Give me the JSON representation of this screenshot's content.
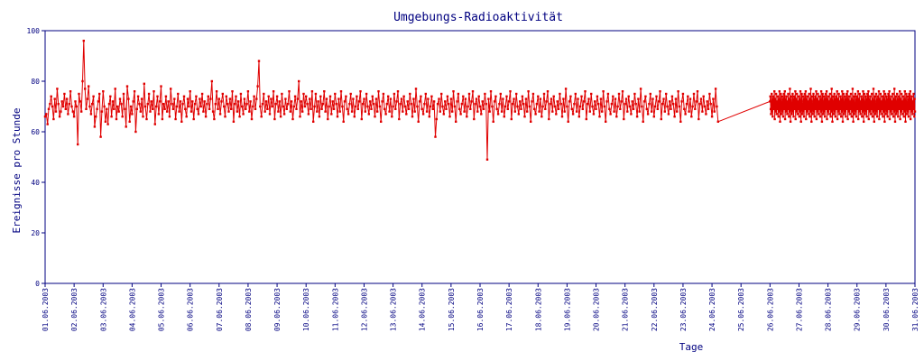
{
  "chart_data": {
    "type": "line",
    "title": "Umgebungs-Radioaktivität",
    "xlabel": "Tage",
    "ylabel": "Ereignisse pro Stunde",
    "ylim": [
      0,
      100
    ],
    "yticks": [
      0,
      20,
      40,
      60,
      80,
      100
    ],
    "xlim_days": [
      1,
      31
    ],
    "xtick_labels": [
      "01.06.2003",
      "02.06.2003",
      "03.06.2003",
      "04.06.2003",
      "05.06.2003",
      "06.06.2003",
      "07.06.2003",
      "08.06.2003",
      "09.06.2003",
      "10.06.2003",
      "11.06.2003",
      "12.06.2003",
      "13.06.2003",
      "14.06.2003",
      "15.06.2003",
      "16.06.2003",
      "17.06.2003",
      "18.06.2003",
      "19.06.2003",
      "20.06.2003",
      "21.06.2003",
      "22.06.2003",
      "23.06.2003",
      "24.06.2003",
      "25.06.2003",
      "26.06.2003",
      "27.06.2003",
      "28.06.2003",
      "29.06.2003",
      "30.06.2003",
      "31.06.2003"
    ],
    "grid": false,
    "colors": {
      "series": "#e00000",
      "axis": "#000080",
      "text": "#000080"
    },
    "series": [
      {
        "sampling": "hourly",
        "gap": [
          "24.06.2003 06:00",
          "26.06.2003 00:00"
        ],
        "values": [
          66,
          67,
          63,
          69,
          71,
          74,
          70,
          65,
          73,
          68,
          77,
          71,
          66,
          68,
          72,
          70,
          75,
          69,
          73,
          67,
          71,
          76,
          70,
          68,
          66,
          72,
          70,
          55,
          75,
          72,
          68,
          80,
          96,
          77,
          69,
          73,
          78,
          70,
          67,
          71,
          74,
          62,
          66,
          69,
          72,
          75,
          58,
          68,
          76,
          70,
          64,
          69,
          63,
          71,
          74,
          66,
          72,
          69,
          77,
          65,
          70,
          68,
          73,
          71,
          66,
          75,
          69,
          62,
          78,
          73,
          64,
          70,
          67,
          72,
          76,
          60,
          69,
          74,
          71,
          68,
          73,
          66,
          79,
          70,
          65,
          71,
          75,
          68,
          72,
          69,
          76,
          63,
          70,
          74,
          67,
          72,
          78,
          65,
          71,
          69,
          74,
          68,
          72,
          66,
          77,
          71,
          69,
          73,
          65,
          70,
          75,
          68,
          72,
          64,
          71,
          74,
          69,
          66,
          73,
          70,
          76,
          68,
          72,
          65,
          71,
          74,
          69,
          67,
          73,
          70,
          75,
          68,
          72,
          66,
          71,
          74,
          69,
          73,
          80,
          68,
          65,
          71,
          76,
          69,
          73,
          67,
          72,
          75,
          70,
          66,
          74,
          71,
          68,
          73,
          69,
          76,
          64,
          71,
          74,
          68,
          72,
          66,
          75,
          70,
          67,
          73,
          69,
          71,
          76,
          68,
          72,
          65,
          70,
          74,
          69,
          73,
          78,
          88,
          70,
          66,
          71,
          75,
          68,
          72,
          69,
          74,
          67,
          73,
          70,
          76,
          65,
          71,
          74,
          68,
          72,
          66,
          75,
          70,
          67,
          73,
          69,
          71,
          76,
          68,
          72,
          65,
          70,
          74,
          69,
          73,
          80,
          66,
          72,
          68,
          75,
          70,
          74,
          71,
          67,
          73,
          69,
          76,
          64,
          70,
          75,
          68,
          72,
          66,
          74,
          69,
          71,
          76,
          68,
          73,
          65,
          70,
          74,
          67,
          72,
          69,
          75,
          71,
          66,
          73,
          68,
          76,
          70,
          64,
          72,
          74,
          69,
          67,
          71,
          75,
          68,
          73,
          66,
          70,
          74,
          69,
          72,
          76,
          65,
          71,
          73,
          68,
          75,
          70,
          67,
          72,
          69,
          74,
          71,
          66,
          73,
          68,
          76,
          70,
          64,
          72,
          75,
          69,
          67,
          71,
          74,
          68,
          73,
          66,
          70,
          75,
          69,
          72,
          76,
          65,
          71,
          73,
          68,
          74,
          70,
          67,
          72,
          69,
          75,
          71,
          66,
          73,
          68,
          77,
          70,
          64,
          72,
          74,
          69,
          67,
          71,
          75,
          68,
          73,
          66,
          70,
          74,
          69,
          72,
          58,
          65,
          71,
          73,
          68,
          75,
          70,
          67,
          72,
          69,
          74,
          71,
          66,
          73,
          68,
          76,
          70,
          64,
          72,
          75,
          69,
          67,
          71,
          74,
          68,
          73,
          66,
          70,
          75,
          69,
          72,
          76,
          65,
          71,
          73,
          68,
          74,
          70,
          67,
          72,
          69,
          75,
          71,
          49,
          73,
          68,
          76,
          70,
          64,
          72,
          74,
          69,
          67,
          71,
          75,
          68,
          73,
          66,
          70,
          74,
          69,
          72,
          76,
          65,
          71,
          73,
          68,
          75,
          70,
          67,
          72,
          69,
          74,
          71,
          66,
          73,
          68,
          76,
          70,
          64,
          72,
          75,
          69,
          67,
          71,
          74,
          68,
          73,
          66,
          70,
          75,
          69,
          72,
          76,
          65,
          71,
          73,
          68,
          74,
          70,
          67,
          72,
          69,
          75,
          71,
          66,
          73,
          68,
          77,
          70,
          64,
          72,
          74,
          69,
          67,
          71,
          75,
          68,
          73,
          66,
          70,
          74,
          69,
          72,
          76,
          65,
          71,
          73,
          68,
          75,
          70,
          67,
          72,
          69,
          74,
          71,
          66,
          73,
          68,
          76,
          70,
          64,
          72,
          75,
          69,
          67,
          71,
          74,
          68,
          73,
          66,
          70,
          75,
          69,
          72,
          76,
          65,
          71,
          73,
          68,
          74,
          70,
          67,
          72,
          69,
          75,
          71,
          66,
          73,
          68,
          77,
          70,
          64,
          72,
          74,
          69,
          67,
          71,
          75,
          68,
          73,
          66,
          70,
          74,
          69,
          72,
          76,
          65,
          71,
          73,
          68,
          75,
          70,
          67,
          72,
          69,
          74,
          71,
          66,
          73,
          68,
          76,
          70,
          64,
          72,
          75,
          69,
          67,
          71,
          74,
          68,
          73,
          66,
          70,
          75,
          69,
          72,
          76,
          65,
          71,
          73,
          68,
          74,
          70,
          67,
          72,
          69,
          75,
          71,
          66,
          73,
          68,
          77,
          70,
          64,
          72,
          74,
          69,
          67,
          71,
          75,
          68,
          73,
          66,
          70,
          74,
          69,
          72,
          76,
          65,
          71,
          73,
          68,
          75,
          70,
          67,
          72,
          69,
          74,
          71,
          66,
          73,
          68,
          76,
          70,
          64,
          72,
          75,
          69,
          67,
          71,
          74,
          68,
          73,
          66,
          70,
          75,
          69,
          72,
          76,
          65,
          71,
          73,
          68,
          74,
          70,
          67,
          72,
          69,
          75,
          71,
          66,
          73,
          68,
          77,
          70,
          64,
          72,
          74,
          69,
          67,
          71,
          75,
          68,
          73,
          66,
          70,
          74,
          69,
          72,
          76,
          65,
          71,
          73,
          68,
          75,
          70,
          67,
          72,
          69,
          74,
          71,
          66,
          73,
          68,
          76,
          70,
          64,
          72,
          75,
          69,
          67,
          71,
          74,
          68,
          73,
          66,
          70,
          75,
          69,
          72,
          76,
          65,
          71,
          73,
          68,
          74,
          70,
          67,
          72,
          69,
          75,
          71,
          66,
          73,
          68,
          77,
          70,
          64,
          72,
          74,
          69,
          67,
          71,
          75,
          68,
          73,
          66,
          70,
          74,
          69,
          72,
          76,
          65,
          71,
          73,
          68,
          75,
          70,
          67,
          72,
          69,
          74,
          71,
          66,
          73,
          68,
          76,
          70,
          64,
          72,
          75,
          69,
          67,
          71,
          74,
          68,
          73,
          66,
          70,
          75,
          69,
          72,
          76,
          65,
          71,
          73,
          68,
          74,
          70,
          67,
          72,
          69,
          75,
          71,
          66,
          73,
          68,
          77,
          70,
          64,
          72,
          74,
          69,
          67,
          71,
          75,
          68,
          73,
          66,
          70,
          74,
          69,
          72,
          76,
          65,
          71,
          73,
          68,
          75,
          70,
          67,
          72,
          69,
          74,
          71,
          66,
          73,
          68,
          76,
          70,
          64,
          72,
          75,
          69,
          67,
          71,
          74,
          68,
          73,
          66,
          70,
          75,
          69,
          72,
          76,
          65,
          71,
          73,
          68,
          74,
          70,
          67,
          72,
          69,
          75,
          71,
          66,
          73,
          68,
          77,
          70,
          64,
          72,
          74,
          69,
          67,
          71,
          75,
          68,
          73,
          66,
          70,
          74,
          69,
          72,
          76,
          65,
          71,
          73,
          68,
          75,
          70,
          67,
          72,
          69,
          74,
          71,
          66,
          73,
          68,
          76,
          70,
          64,
          72,
          75,
          69,
          67,
          71,
          74,
          68,
          73,
          66,
          70,
          75,
          69,
          72,
          76,
          65,
          71,
          73,
          68,
          74,
          70,
          67,
          72,
          69,
          75,
          71,
          66,
          73,
          68,
          77,
          70,
          64,
          72,
          74,
          69,
          67,
          71,
          75,
          68,
          73,
          66,
          70,
          74,
          69,
          72,
          76,
          65,
          71,
          73,
          68,
          75,
          70,
          67,
          72,
          69,
          74,
          71,
          66,
          73,
          68,
          76,
          70,
          64,
          72,
          75,
          69,
          67,
          71,
          74,
          68,
          73,
          66,
          70,
          75,
          69,
          72,
          76,
          65,
          71,
          73,
          68,
          74,
          70,
          67,
          72,
          69,
          75,
          71,
          66,
          73,
          68,
          77,
          70,
          64,
          72,
          74,
          69,
          67,
          71,
          75,
          68,
          73,
          66,
          70,
          74,
          69,
          72,
          76,
          65,
          71,
          73,
          68,
          75,
          70,
          67,
          72,
          69,
          74,
          71,
          66,
          73,
          68,
          76,
          70,
          64,
          72,
          75,
          69,
          67,
          71,
          74,
          68,
          73,
          66,
          70,
          75,
          69,
          72,
          76,
          65,
          71,
          73,
          68,
          74,
          70,
          67,
          72,
          69,
          75,
          71,
          66,
          73,
          68
        ]
      }
    ]
  }
}
